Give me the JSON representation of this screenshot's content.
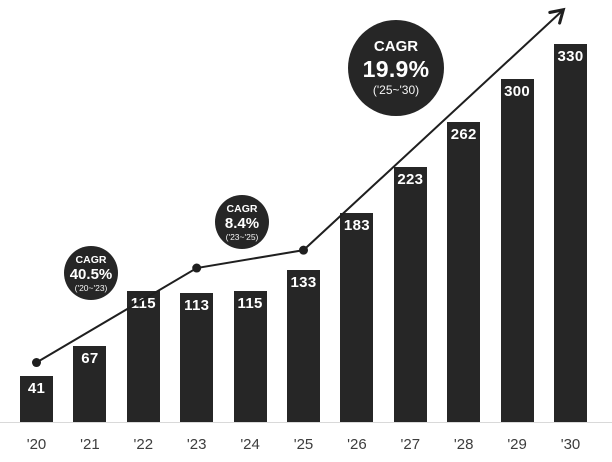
{
  "chart_data": {
    "type": "bar",
    "title": "",
    "categories": [
      "'20",
      "'21",
      "'22",
      "'23",
      "'24",
      "'25",
      "'26",
      "'27",
      "'28",
      "'29",
      "'30"
    ],
    "values": [
      41,
      67,
      115,
      113,
      115,
      133,
      183,
      223,
      262,
      300,
      330
    ],
    "ylim": [
      0,
      370
    ],
    "grid": false,
    "legend": false,
    "value_labels": "inside-top",
    "bar_color": "#262626",
    "value_label_color": "#ffffff",
    "category_label_color": "#3d3d3d",
    "baseline_color": "#d9d9d9",
    "trend_line": {
      "type": "line",
      "color": "#1f1f1f",
      "anchors": [
        "'20",
        "'23",
        "'25"
      ],
      "dots": true,
      "arrowhead": true
    },
    "annotations": [
      {
        "label": "CAGR",
        "value": "40.5%",
        "range": "('20~'23)",
        "size": "small"
      },
      {
        "label": "CAGR",
        "value": "8.4%",
        "range": "('23~'25)",
        "size": "small"
      },
      {
        "label": "CAGR",
        "value": "19.9%",
        "range": "('25~'30)",
        "size": "large"
      }
    ],
    "bubble_color": "#262626",
    "bubble_text_color": "#ffffff"
  }
}
